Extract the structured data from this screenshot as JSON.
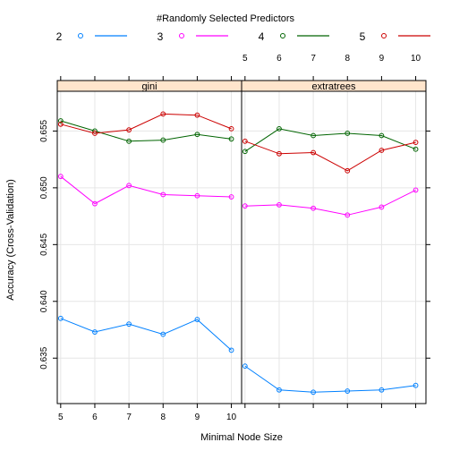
{
  "chart_data": {
    "type": "line",
    "legend_title": "#Randomly Selected Predictors",
    "legend_placement": "top",
    "xlabel": "Minimal Node Size",
    "ylabel": "Accuracy (Cross-Validation)",
    "x": [
      5,
      6,
      7,
      8,
      9,
      10
    ],
    "x_ticks": [
      "5",
      "6",
      "7",
      "8",
      "9",
      "10"
    ],
    "ylim": [
      0.631,
      0.6585
    ],
    "y_ticks": [
      0.635,
      0.64,
      0.645,
      0.65,
      0.655
    ],
    "y_tick_labels": [
      "0.635",
      "0.640",
      "0.645",
      "0.650",
      "0.655"
    ],
    "grid": true,
    "panels": [
      {
        "name": "gini",
        "series": [
          {
            "name": "2",
            "color": "#0080ff",
            "values": [
              0.6385,
              0.6373,
              0.638,
              0.6371,
              0.6384,
              0.6357
            ]
          },
          {
            "name": "3",
            "color": "#ff00ff",
            "values": [
              0.651,
              0.6486,
              0.6502,
              0.6494,
              0.6493,
              0.6492
            ]
          },
          {
            "name": "4",
            "color": "#006400",
            "values": [
              0.6559,
              0.655,
              0.6541,
              0.6542,
              0.6547,
              0.6543
            ]
          },
          {
            "name": "5",
            "color": "#cc0000",
            "values": [
              0.6556,
              0.6548,
              0.6551,
              0.6565,
              0.6564,
              0.6552
            ]
          }
        ]
      },
      {
        "name": "extratrees",
        "series": [
          {
            "name": "2",
            "color": "#0080ff",
            "values": [
              0.6343,
              0.6322,
              0.632,
              0.6321,
              0.6322,
              0.6326
            ]
          },
          {
            "name": "3",
            "color": "#ff00ff",
            "values": [
              0.6484,
              0.6485,
              0.6482,
              0.6476,
              0.6483,
              0.6498
            ]
          },
          {
            "name": "4",
            "color": "#006400",
            "values": [
              0.6532,
              0.6552,
              0.6546,
              0.6548,
              0.6546,
              0.6534
            ]
          },
          {
            "name": "5",
            "color": "#cc0000",
            "values": [
              0.6541,
              0.653,
              0.6531,
              0.6515,
              0.6533,
              0.654
            ]
          }
        ]
      }
    ],
    "strip_color": "#ffe5cc"
  }
}
